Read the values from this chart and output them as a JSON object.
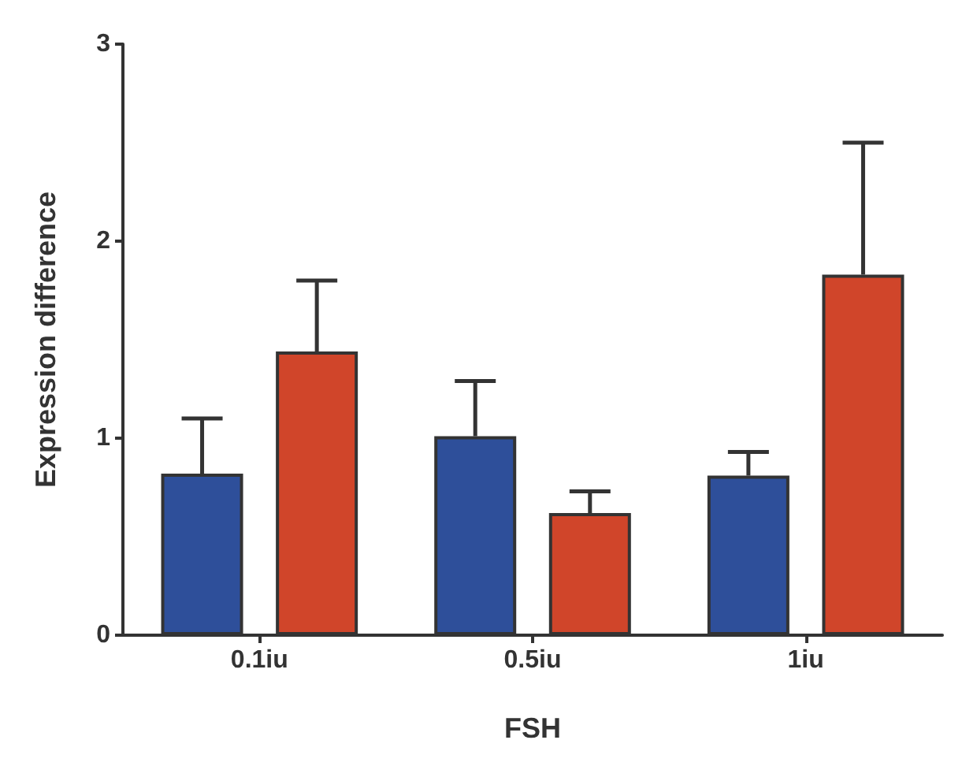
{
  "chart_data": {
    "type": "bar",
    "xlabel": "FSH",
    "ylabel": "Expression difference",
    "categories": [
      "0.1iu",
      "0.5iu",
      "1iu"
    ],
    "series": [
      {
        "color": "#2e4f9a",
        "values": [
          0.82,
          1.01,
          0.81
        ],
        "errors": [
          [
            0.82,
            1.1
          ],
          [
            1.01,
            1.29
          ],
          [
            0.81,
            0.93
          ]
        ]
      },
      {
        "color": "#d0452a",
        "values": [
          1.44,
          0.62,
          1.83
        ],
        "errors": [
          [
            1.44,
            1.8
          ],
          [
            0.62,
            0.73
          ],
          [
            1.83,
            2.5
          ]
        ]
      }
    ],
    "ylim": [
      0,
      3
    ],
    "yticks": [
      0,
      1,
      2,
      3
    ],
    "grid": false
  }
}
